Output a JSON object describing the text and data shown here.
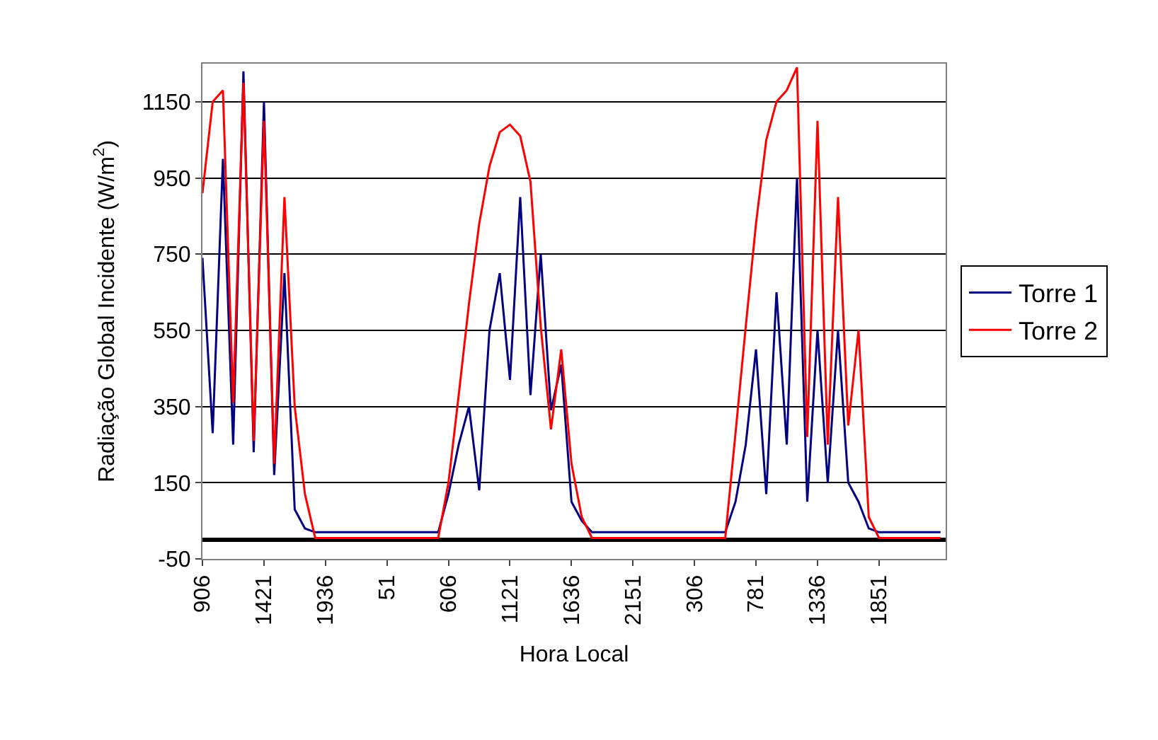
{
  "chart_data": {
    "type": "line",
    "xlabel": "Hora Local",
    "ylabel": "Radiação Global Incidente (W/m$^{2}$)",
    "categories": [
      "906",
      null,
      null,
      null,
      null,
      null,
      "1421",
      null,
      null,
      null,
      null,
      null,
      "1936",
      null,
      null,
      null,
      null,
      null,
      "51",
      null,
      null,
      null,
      null,
      null,
      "606",
      null,
      null,
      null,
      null,
      null,
      "1121",
      null,
      null,
      null,
      null,
      null,
      "1636",
      null,
      null,
      null,
      null,
      null,
      "2151",
      null,
      null,
      null,
      null,
      null,
      "306",
      null,
      null,
      null,
      null,
      null,
      "781",
      null,
      null,
      null,
      null,
      null,
      "1336",
      null,
      null,
      null,
      null,
      null,
      "1851",
      null,
      null,
      null,
      null,
      null,
      null
    ],
    "series": [
      {
        "name": "Torre 1",
        "color": "#000080",
        "values": [
          740,
          280,
          1000,
          250,
          1230,
          230,
          1150,
          170,
          700,
          80,
          30,
          20,
          20,
          20,
          20,
          20,
          20,
          20,
          20,
          20,
          20,
          20,
          20,
          20,
          120,
          250,
          350,
          130,
          550,
          700,
          420,
          900,
          380,
          750,
          340,
          460,
          100,
          50,
          20,
          20,
          20,
          20,
          20,
          20,
          20,
          20,
          20,
          20,
          20,
          20,
          20,
          20,
          100,
          250,
          500,
          120,
          650,
          250,
          950,
          100,
          550,
          150,
          550,
          150,
          100,
          30,
          20,
          20,
          20,
          20,
          20,
          20,
          20
        ]
      },
      {
        "name": "Torre 2",
        "color": "#ff0000",
        "values": [
          910,
          1150,
          1180,
          360,
          1200,
          260,
          1100,
          200,
          900,
          350,
          120,
          5,
          5,
          5,
          5,
          5,
          5,
          5,
          5,
          5,
          5,
          5,
          5,
          5,
          150,
          380,
          620,
          830,
          980,
          1070,
          1090,
          1060,
          940,
          560,
          290,
          500,
          200,
          60,
          5,
          5,
          5,
          5,
          5,
          5,
          5,
          5,
          5,
          5,
          5,
          5,
          5,
          5,
          280,
          560,
          830,
          1050,
          1150,
          1180,
          1240,
          270,
          1100,
          250,
          900,
          300,
          550,
          60,
          5,
          5,
          5,
          5,
          5,
          5,
          5
        ]
      }
    ],
    "ylim": [
      -50,
      1250
    ],
    "yticks": [
      -50,
      150,
      350,
      550,
      750,
      950,
      1150
    ],
    "grid": "y",
    "legend": "right",
    "marker": "none",
    "line_style": "solid"
  }
}
